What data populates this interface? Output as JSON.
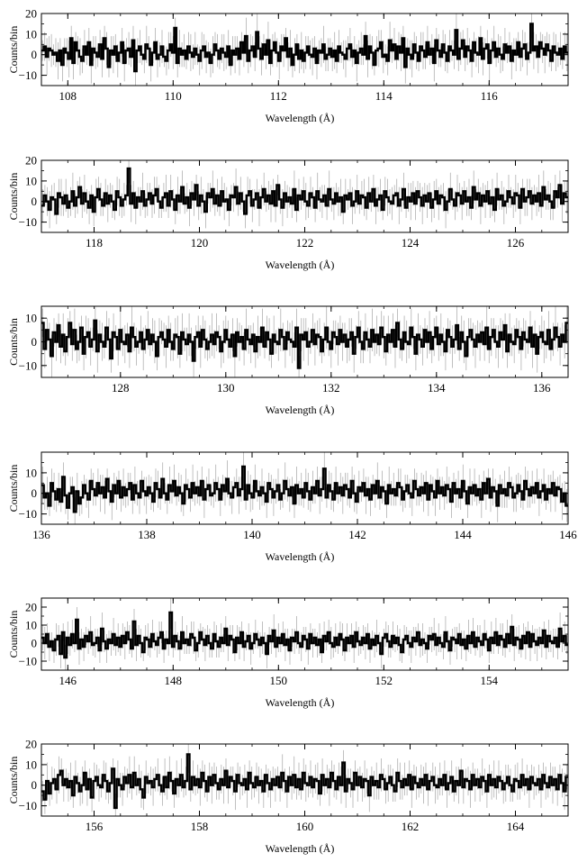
{
  "colors": {
    "line": "#000000",
    "errorbar": "#b0b0b0",
    "frame": "#000000",
    "background": "#ffffff"
  },
  "chart_data": [
    {
      "type": "line",
      "style": "step-histogram-with-error-bars",
      "xlabel": "Wavelength (Å)",
      "ylabel": "Counts/bin",
      "xlim": [
        107.5,
        117.5
      ],
      "ylim": [
        -15,
        20
      ],
      "xticks": [
        108,
        110,
        112,
        114,
        116
      ],
      "xticklabels": [
        "108",
        "110",
        "112",
        "114",
        "116"
      ],
      "yticks": [
        -10,
        0,
        10,
        20
      ],
      "yticklabels": [
        "−10",
        "0",
        "10",
        "20"
      ],
      "bin_width": 0.05,
      "values": [
        2,
        4,
        -1,
        3,
        2,
        0,
        1,
        -3,
        2,
        -5,
        3,
        1,
        -2,
        8,
        -4,
        6,
        2,
        -1,
        -3,
        4,
        0,
        6,
        -5,
        3,
        1,
        -1,
        5,
        -2,
        8,
        3,
        -6,
        2,
        0,
        4,
        -3,
        1,
        6,
        -4,
        2,
        3,
        -1,
        7,
        -8,
        2,
        4,
        0,
        -2,
        5,
        3,
        -5,
        1,
        6,
        -2,
        0,
        4,
        -1,
        -3,
        2,
        5,
        1,
        13,
        -4,
        3,
        0,
        2,
        -2,
        4,
        1,
        -1,
        3,
        0,
        -3,
        2,
        4,
        -1,
        1,
        -4,
        0,
        5,
        2,
        -2,
        3,
        1,
        -1,
        4,
        -5,
        2,
        0,
        3,
        -2,
        6,
        1,
        9,
        -3,
        2,
        4,
        -1,
        11,
        3,
        -2,
        5,
        0,
        7,
        -4,
        2,
        6,
        1,
        -3,
        4,
        2,
        8,
        -1,
        3,
        -5,
        0,
        5,
        -2,
        2,
        -3,
        1,
        4,
        0,
        -1,
        3,
        -4,
        2,
        1,
        5,
        -2,
        0,
        3,
        -1,
        2,
        -3,
        4,
        1,
        0,
        -2,
        3,
        5,
        -1,
        2,
        -4,
        1,
        3,
        0,
        9,
        -2,
        4,
        1,
        -5,
        2,
        3,
        6,
        -1,
        0,
        -3,
        7,
        2,
        5,
        -2,
        4,
        1,
        8,
        -6,
        3,
        0,
        -2,
        5,
        1,
        -3,
        4,
        2,
        -1,
        6,
        0,
        3,
        -4,
        7,
        2,
        -1,
        5,
        1,
        -3,
        4,
        2,
        0,
        12,
        -2,
        3,
        7,
        -1,
        4,
        2,
        -3,
        6,
        1,
        0,
        8,
        -2,
        3,
        5,
        -4,
        2,
        6,
        -1,
        3,
        0,
        -2,
        5,
        1,
        4,
        -3,
        2,
        0,
        6,
        -1,
        3,
        5,
        -2,
        1,
        15,
        2,
        4,
        -1,
        6,
        3,
        0,
        5,
        2,
        -3,
        4,
        1,
        0,
        3,
        -2,
        4,
        1
      ]
    },
    {
      "type": "line",
      "style": "step-histogram-with-error-bars",
      "xlabel": "Wavelength (Å)",
      "ylabel": "Counts/bin",
      "xlim": [
        117,
        127
      ],
      "ylim": [
        -15,
        20
      ],
      "xticks": [
        118,
        120,
        122,
        124,
        126
      ],
      "xticklabels": [
        "118",
        "120",
        "122",
        "124",
        "126"
      ],
      "yticks": [
        -10,
        0,
        10,
        20
      ],
      "yticklabels": [
        "−10",
        "0",
        "10",
        "20"
      ],
      "bin_width": 0.05,
      "values": [
        -2,
        3,
        0,
        -4,
        2,
        1,
        -6,
        4,
        2,
        -1,
        3,
        -3,
        0,
        5,
        -2,
        2,
        7,
        -1,
        4,
        0,
        -3,
        3,
        -5,
        2,
        6,
        1,
        -2,
        4,
        -1,
        3,
        0,
        -4,
        5,
        2,
        -2,
        1,
        3,
        16,
        -1,
        4,
        -3,
        2,
        0,
        5,
        -2,
        1,
        4,
        -1,
        3,
        6,
        0,
        -3,
        2,
        4,
        -2,
        5,
        1,
        -4,
        3,
        0,
        7,
        -1,
        2,
        -3,
        4,
        1,
        8,
        -2,
        3,
        0,
        -5,
        4,
        2,
        6,
        -1,
        3,
        -2,
        5,
        0,
        1,
        -4,
        3,
        2,
        7,
        -1,
        4,
        0,
        -6,
        3,
        5,
        -2,
        1,
        4,
        -3,
        2,
        6,
        0,
        3,
        -1,
        5,
        -2,
        8,
        1,
        -3,
        4,
        0,
        2,
        -1,
        6,
        -4,
        3,
        1,
        5,
        0,
        -2,
        4,
        2,
        -3,
        5,
        1,
        0,
        3,
        -2,
        6,
        1,
        -1,
        4,
        0,
        2,
        -5,
        3,
        1,
        4,
        -2,
        0,
        5,
        -1,
        3,
        2,
        -3,
        4,
        0,
        6,
        -2,
        1,
        3,
        -4,
        5,
        2,
        0,
        -1,
        3,
        4,
        -2,
        1,
        6,
        -3,
        2,
        0,
        4,
        -1,
        5,
        2,
        -2,
        3,
        0,
        4,
        -3,
        1,
        5,
        -1,
        3,
        2,
        -4,
        0,
        6,
        1,
        -2,
        4,
        3,
        -1,
        5,
        0,
        2,
        -3,
        7,
        1,
        4,
        -2,
        3,
        0,
        5,
        -1,
        2,
        -4,
        6,
        1,
        3,
        -2,
        0,
        5,
        2,
        -1,
        4,
        3,
        -3,
        6,
        0,
        2,
        5,
        -1,
        3,
        0,
        4,
        -2,
        7,
        1,
        3,
        0,
        -3,
        5,
        2,
        8,
        -1,
        4,
        2
      ]
    },
    {
      "type": "line",
      "style": "step-histogram-with-error-bars",
      "xlabel": "Wavelength (Å)",
      "ylabel": "Counts/bin",
      "xlim": [
        126.5,
        136.5
      ],
      "ylim": [
        -15,
        15
      ],
      "xticks": [
        128,
        130,
        132,
        134,
        136
      ],
      "xticklabels": [
        "128",
        "130",
        "132",
        "134",
        "136"
      ],
      "yticks": [
        -10,
        0,
        10
      ],
      "yticklabels": [
        "−10",
        "0",
        "10"
      ],
      "bin_width": 0.05,
      "values": [
        8,
        -3,
        5,
        1,
        -6,
        4,
        0,
        7,
        -2,
        3,
        -4,
        2,
        8,
        -1,
        5,
        -3,
        0,
        6,
        -5,
        2,
        4,
        -2,
        1,
        9,
        -4,
        3,
        0,
        -2,
        6,
        1,
        -7,
        4,
        2,
        -3,
        5,
        0,
        -1,
        3,
        -4,
        6,
        2,
        -2,
        0,
        4,
        -3,
        1,
        5,
        -1,
        3,
        0,
        -6,
        2,
        4,
        1,
        -2,
        5,
        0,
        -3,
        3,
        2,
        -5,
        4,
        1,
        -1,
        3,
        0,
        -8,
        2,
        4,
        -2,
        5,
        1,
        -3,
        0,
        3,
        -1,
        4,
        2,
        -4,
        0,
        5,
        1,
        -2,
        3,
        -6,
        4,
        0,
        2,
        -3,
        5,
        1,
        -1,
        3,
        -4,
        2,
        0,
        6,
        -2,
        4,
        1,
        -5,
        3,
        0,
        -1,
        5,
        2,
        -3,
        4,
        1,
        0,
        -2,
        6,
        -11,
        3,
        1,
        4,
        -2,
        0,
        5,
        -1,
        3,
        2,
        -4,
        1,
        6,
        0,
        -3,
        4,
        2,
        -1,
        5,
        0,
        3,
        -2,
        1,
        4,
        -5,
        2,
        6,
        0,
        -3,
        4,
        1,
        -2,
        5,
        0,
        3,
        -1,
        6,
        2,
        -4,
        3,
        0,
        5,
        -2,
        8,
        1,
        -3,
        4,
        0,
        -1,
        6,
        2,
        -5,
        3,
        1,
        -2,
        5,
        0,
        4,
        -3,
        2,
        6,
        -1,
        3,
        0,
        -4,
        5,
        2,
        -2,
        1,
        7,
        -3,
        4,
        0,
        -6,
        2,
        5,
        1,
        -2,
        3,
        0,
        4,
        -1,
        6,
        -3,
        2,
        5,
        0,
        -2,
        4,
        1,
        7,
        -4,
        3,
        0,
        -1,
        5,
        2,
        -3,
        4,
        1,
        0,
        6,
        -2,
        3,
        -5,
        2,
        4,
        0,
        -1,
        5,
        -3,
        1,
        6,
        2,
        -2,
        3,
        0,
        8
      ]
    },
    {
      "type": "line",
      "style": "step-histogram-with-error-bars",
      "xlabel": "Wavelength (Å)",
      "ylabel": "Counts/bin",
      "xlim": [
        136,
        146
      ],
      "ylim": [
        -15,
        20
      ],
      "xticks": [
        136,
        138,
        140,
        142,
        144,
        146
      ],
      "xticklabels": [
        "136",
        "138",
        "140",
        "142",
        "144",
        "146"
      ],
      "yticks": [
        -10,
        0,
        10
      ],
      "yticklabels": [
        "−10",
        "0",
        "10"
      ],
      "bin_width": 0.05,
      "values": [
        4,
        -2,
        0,
        -6,
        5,
        1,
        -3,
        2,
        -4,
        8,
        -1,
        -7,
        0,
        3,
        -9,
        1,
        -5,
        -2,
        4,
        0,
        -3,
        6,
        2,
        -1,
        5,
        0,
        3,
        -2,
        7,
        1,
        -4,
        4,
        0,
        6,
        -2,
        3,
        -1,
        2,
        5,
        -3,
        4,
        0,
        -2,
        6,
        1,
        -1,
        3,
        0,
        -4,
        5,
        2,
        -2,
        7,
        0,
        -3,
        4,
        1,
        6,
        -1,
        3,
        0,
        -5,
        4,
        2,
        -2,
        5,
        0,
        3,
        -1,
        6,
        -3,
        2,
        4,
        -1,
        0,
        5,
        2,
        -3,
        4,
        1,
        7,
        0,
        -2,
        3,
        5,
        -1,
        2,
        13,
        -3,
        4,
        0,
        -2,
        6,
        1,
        -1,
        3,
        0,
        -4,
        5,
        2,
        -2,
        1,
        4,
        -3,
        0,
        6,
        2,
        -1,
        3,
        -5,
        4,
        0,
        2,
        -2,
        5,
        1,
        -3,
        3,
        0,
        6,
        -1,
        2,
        12,
        -2,
        4,
        1,
        -3,
        5,
        0,
        3,
        -1,
        4,
        2,
        -2,
        6,
        0,
        -4,
        3,
        1,
        5,
        -1,
        2,
        -3,
        4,
        0,
        6,
        -2,
        3,
        1,
        -5,
        4,
        0,
        2,
        -1,
        5,
        3,
        -3,
        1,
        4,
        0,
        -2,
        6,
        2,
        -1,
        3,
        0,
        5,
        -3,
        4,
        1,
        -2,
        6,
        0,
        3,
        -1,
        4,
        2,
        -4,
        5,
        0,
        2,
        -2,
        6,
        1,
        -5,
        3,
        0,
        4,
        -1,
        2,
        -3,
        5,
        0,
        7,
        -2,
        3,
        1,
        -6,
        4,
        0,
        2,
        -1,
        5,
        3,
        -2,
        0,
        4,
        1,
        -3,
        6,
        2,
        -1,
        3,
        0,
        5,
        -2,
        1,
        4,
        -3,
        2,
        0,
        5,
        -1,
        3,
        2,
        -4,
        0,
        -6
      ]
    },
    {
      "type": "line",
      "style": "step-histogram-with-error-bars",
      "xlabel": "Wavelength (Å)",
      "ylabel": "Counts/bin",
      "xlim": [
        145.5,
        155.5
      ],
      "ylim": [
        -15,
        25
      ],
      "xticks": [
        146,
        148,
        150,
        152,
        154
      ],
      "xticklabels": [
        "146",
        "148",
        "150",
        "152",
        "154"
      ],
      "yticks": [
        -10,
        0,
        10,
        20
      ],
      "yticklabels": [
        "−10",
        "0",
        "10",
        "20"
      ],
      "bin_width": 0.05,
      "values": [
        3,
        0,
        5,
        -2,
        1,
        -4,
        2,
        4,
        -6,
        6,
        -8,
        3,
        -1,
        5,
        0,
        13,
        -3,
        2,
        -2,
        4,
        1,
        6,
        -1,
        0,
        3,
        -4,
        8,
        1,
        -3,
        2,
        0,
        5,
        -1,
        3,
        -2,
        4,
        0,
        6,
        2,
        -3,
        12,
        -1,
        4,
        0,
        -5,
        3,
        2,
        -2,
        5,
        1,
        -1,
        3,
        6,
        -3,
        2,
        0,
        17,
        -2,
        4,
        1,
        -3,
        6,
        0,
        2,
        -1,
        5,
        3,
        -4,
        0,
        6,
        2,
        -1,
        4,
        0,
        -3,
        5,
        1,
        -2,
        3,
        0,
        8,
        -1,
        4,
        2,
        -5,
        3,
        0,
        6,
        -2,
        1,
        4,
        -3,
        0,
        5,
        2,
        -1,
        3,
        0,
        -6,
        4,
        1,
        7,
        -2,
        3,
        0,
        5,
        -1,
        2,
        -4,
        3,
        1,
        6,
        0,
        -2,
        4,
        2,
        -3,
        5,
        0,
        3,
        -1,
        2,
        -5,
        4,
        1,
        6,
        0,
        -2,
        3,
        -1,
        5,
        2,
        -4,
        3,
        0,
        4,
        -2,
        6,
        1,
        -1,
        3,
        0,
        5,
        -3,
        2,
        -1,
        4,
        0,
        -6,
        3,
        5,
        1,
        -2,
        4,
        0,
        3,
        -1,
        -5,
        2,
        4,
        0,
        -2,
        3,
        1,
        6,
        -1,
        2,
        0,
        -3,
        4,
        2,
        5,
        -1,
        3,
        0,
        -2,
        6,
        1,
        -4,
        3,
        2,
        0,
        5,
        -1,
        2,
        -3,
        4,
        0,
        6,
        -2,
        3,
        1,
        -1,
        5,
        2,
        -4,
        3,
        0,
        6,
        -1,
        4,
        2,
        -2,
        5,
        0,
        9,
        -1,
        3,
        2,
        -3,
        4,
        0,
        6,
        -2,
        5,
        1,
        -1,
        3,
        0,
        7,
        -2,
        4,
        1,
        0,
        3,
        -2,
        8,
        1,
        4,
        -1
      ]
    },
    {
      "type": "line",
      "style": "step-histogram-with-error-bars",
      "xlabel": "Wavelength (Å)",
      "ylabel": "Counts/bin",
      "xlim": [
        155,
        165
      ],
      "ylim": [
        -15,
        20
      ],
      "xticks": [
        156,
        158,
        160,
        162,
        164
      ],
      "xticklabels": [
        "156",
        "158",
        "160",
        "162",
        "164"
      ],
      "yticks": [
        -10,
        0,
        10,
        20
      ],
      "yticklabels": [
        "−10",
        "0",
        "10",
        "20"
      ],
      "bin_width": 0.05,
      "values": [
        -3,
        -7,
        2,
        -4,
        1,
        3,
        -2,
        5,
        7,
        0,
        3,
        -1,
        2,
        -5,
        4,
        1,
        -3,
        0,
        6,
        -2,
        3,
        -6,
        2,
        4,
        0,
        -1,
        5,
        2,
        -3,
        1,
        8,
        -11,
        3,
        0,
        -2,
        4,
        1,
        5,
        -1,
        6,
        0,
        3,
        -2,
        -6,
        4,
        1,
        2,
        -1,
        3,
        5,
        0,
        -3,
        4,
        -1,
        6,
        2,
        -4,
        3,
        0,
        5,
        -1,
        2,
        15,
        -2,
        4,
        0,
        3,
        -1,
        6,
        2,
        -3,
        4,
        0,
        5,
        1,
        -2,
        3,
        0,
        7,
        -1,
        4,
        2,
        -3,
        5,
        1,
        0,
        3,
        -2,
        6,
        1,
        -1,
        4,
        0,
        2,
        -3,
        5,
        1,
        -2,
        3,
        0,
        4,
        -1,
        6,
        2,
        -3,
        4,
        0,
        5,
        -1,
        3,
        -2,
        6,
        1,
        0,
        4,
        -1,
        3,
        2,
        -4,
        5,
        0,
        3,
        -1,
        6,
        2,
        -2,
        4,
        0,
        11,
        -3,
        3,
        1,
        -2,
        6,
        0,
        4,
        -1,
        3,
        2,
        -5,
        4,
        0,
        2,
        -1,
        5,
        3,
        -2,
        1,
        4,
        0,
        -3,
        6,
        2,
        -1,
        3,
        0,
        5,
        -2,
        4,
        1,
        -1,
        3,
        0,
        5,
        -2,
        2,
        4,
        0,
        -1,
        3,
        0,
        5,
        -2,
        1,
        4,
        -3,
        2,
        0,
        7,
        -1,
        3,
        2,
        -2,
        5,
        0,
        3,
        -1,
        4,
        2,
        -3,
        5,
        0,
        3,
        -1,
        4,
        2,
        -2,
        1,
        4,
        0,
        -3,
        3,
        2,
        -1,
        5,
        0,
        3,
        -2,
        4,
        1,
        0,
        3,
        -2,
        5,
        1,
        -1,
        4,
        0,
        3,
        -2,
        5,
        1,
        -3,
        4
      ]
    }
  ]
}
